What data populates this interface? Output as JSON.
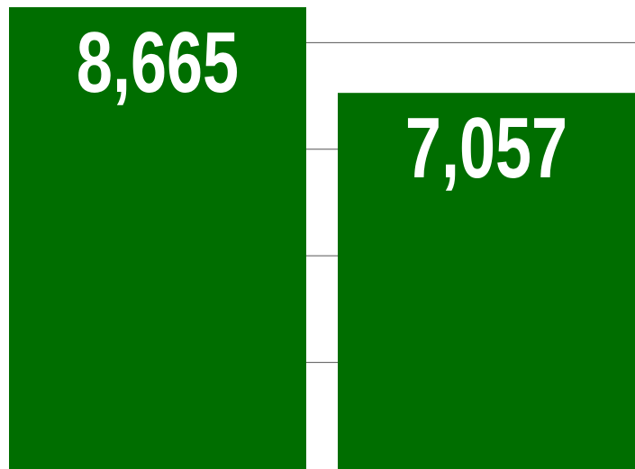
{
  "chart_data": {
    "type": "bar",
    "categories": [
      null,
      null
    ],
    "values": [
      8665,
      7057
    ],
    "value_labels": [
      "8,665",
      "7,057"
    ],
    "color": "#006e00",
    "ylim": [
      0,
      8800
    ],
    "yticks": [
      2000,
      4000,
      6000,
      8000
    ],
    "grid": true
  }
}
